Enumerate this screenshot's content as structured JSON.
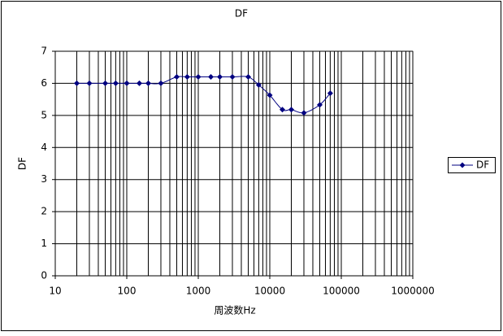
{
  "chart_data": {
    "type": "line",
    "title": "DF",
    "x_label": "周波数Hz",
    "y_label": "DF",
    "x": [
      20,
      30,
      50,
      70,
      100,
      150,
      200,
      300,
      500,
      700,
      1000,
      1500,
      2000,
      3000,
      5000,
      7000,
      10000,
      15000,
      20000,
      30000,
      50000,
      70000
    ],
    "series": [
      {
        "name": "DF",
        "color": "#000080",
        "values": [
          6.0,
          6.0,
          6.0,
          6.0,
          6.0,
          6.0,
          6.0,
          6.0,
          6.2,
          6.2,
          6.2,
          6.2,
          6.2,
          6.2,
          6.2,
          5.95,
          5.63,
          5.18,
          5.18,
          5.08,
          5.33,
          5.69
        ]
      }
    ],
    "xscale": "log",
    "xlim": [
      10,
      1000000
    ],
    "xticks": [
      10,
      100,
      1000,
      10000,
      100000,
      1000000
    ],
    "ylim": [
      0,
      7
    ],
    "yticks": [
      0,
      1,
      2,
      3,
      4,
      5,
      6,
      7
    ],
    "grid": true,
    "legend": "right"
  }
}
